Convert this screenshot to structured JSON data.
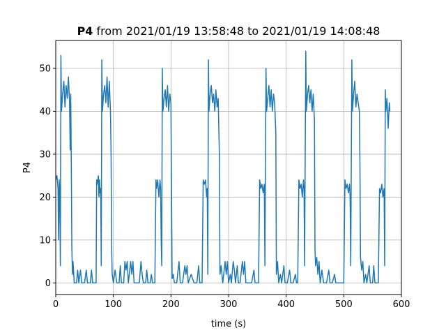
{
  "chart_data": {
    "type": "line",
    "title_bold": "P4",
    "title_rest": " from 2021/01/19 13:58:48 to 2021/01/19 14:08:48",
    "xlabel": "time (s)",
    "ylabel": "P4",
    "xlim": [
      0,
      600
    ],
    "ylim": [
      -2.7,
      56.5
    ],
    "xticks": [
      0,
      100,
      200,
      300,
      400,
      500,
      600
    ],
    "yticks": [
      0,
      10,
      20,
      30,
      40,
      50
    ],
    "grid": true,
    "series_color": "#1f77b4",
    "series": [
      {
        "values": [
          [
            0,
            24
          ],
          [
            2,
            25
          ],
          [
            4,
            22
          ],
          [
            5,
            10
          ],
          [
            6,
            24
          ],
          [
            7,
            21
          ],
          [
            8,
            4
          ],
          [
            9,
            53
          ],
          [
            10,
            40
          ],
          [
            12,
            44
          ],
          [
            14,
            47
          ],
          [
            16,
            41
          ],
          [
            18,
            46
          ],
          [
            20,
            43
          ],
          [
            22,
            48
          ],
          [
            24,
            42
          ],
          [
            25,
            31
          ],
          [
            26,
            44
          ],
          [
            27,
            28
          ],
          [
            28,
            8
          ],
          [
            29,
            2
          ],
          [
            30,
            5
          ],
          [
            32,
            0
          ],
          [
            36,
            0
          ],
          [
            38,
            3
          ],
          [
            40,
            0
          ],
          [
            43,
            3
          ],
          [
            45,
            0
          ],
          [
            50,
            0
          ],
          [
            53,
            3
          ],
          [
            55,
            0
          ],
          [
            60,
            0
          ],
          [
            62,
            3
          ],
          [
            64,
            0
          ],
          [
            66,
            0
          ],
          [
            70,
            0
          ],
          [
            71,
            24
          ],
          [
            72,
            23
          ],
          [
            74,
            25
          ],
          [
            75,
            20
          ],
          [
            76,
            24
          ],
          [
            77,
            21
          ],
          [
            78,
            22
          ],
          [
            79,
            4
          ],
          [
            80,
            52
          ],
          [
            81,
            40
          ],
          [
            83,
            44
          ],
          [
            85,
            46
          ],
          [
            87,
            42
          ],
          [
            89,
            48
          ],
          [
            91,
            41
          ],
          [
            93,
            47
          ],
          [
            95,
            40
          ],
          [
            96,
            30
          ],
          [
            97,
            8
          ],
          [
            98,
            2
          ],
          [
            100,
            0
          ],
          [
            103,
            3
          ],
          [
            106,
            0
          ],
          [
            110,
            0
          ],
          [
            112,
            4
          ],
          [
            114,
            0
          ],
          [
            118,
            0
          ],
          [
            120,
            5
          ],
          [
            122,
            3
          ],
          [
            124,
            5
          ],
          [
            126,
            0
          ],
          [
            130,
            5
          ],
          [
            132,
            2
          ],
          [
            134,
            5
          ],
          [
            136,
            0
          ],
          [
            140,
            0
          ],
          [
            145,
            0
          ],
          [
            148,
            5
          ],
          [
            150,
            2
          ],
          [
            152,
            0
          ],
          [
            156,
            0
          ],
          [
            158,
            3
          ],
          [
            160,
            0
          ],
          [
            164,
            0
          ],
          [
            166,
            2
          ],
          [
            168,
            0
          ],
          [
            170,
            0
          ],
          [
            172,
            0
          ],
          [
            174,
            24
          ],
          [
            175,
            22
          ],
          [
            177,
            24
          ],
          [
            179,
            20
          ],
          [
            181,
            24
          ],
          [
            182,
            22
          ],
          [
            183,
            10
          ],
          [
            184,
            4
          ],
          [
            185,
            50
          ],
          [
            186,
            40
          ],
          [
            188,
            43
          ],
          [
            190,
            45
          ],
          [
            192,
            41
          ],
          [
            194,
            46
          ],
          [
            196,
            40
          ],
          [
            198,
            44
          ],
          [
            200,
            42
          ],
          [
            201,
            20
          ],
          [
            202,
            1
          ],
          [
            204,
            2
          ],
          [
            206,
            0
          ],
          [
            210,
            0
          ],
          [
            214,
            5
          ],
          [
            216,
            0
          ],
          [
            220,
            0
          ],
          [
            224,
            4
          ],
          [
            226,
            2
          ],
          [
            228,
            4
          ],
          [
            230,
            0
          ],
          [
            235,
            2
          ],
          [
            240,
            0
          ],
          [
            245,
            0
          ],
          [
            248,
            4
          ],
          [
            250,
            0
          ],
          [
            254,
            0
          ],
          [
            256,
            24
          ],
          [
            258,
            23
          ],
          [
            260,
            24
          ],
          [
            262,
            20
          ],
          [
            263,
            22
          ],
          [
            264,
            2
          ],
          [
            265,
            52
          ],
          [
            266,
            40
          ],
          [
            268,
            44
          ],
          [
            270,
            46
          ],
          [
            272,
            42
          ],
          [
            274,
            44
          ],
          [
            276,
            40
          ],
          [
            278,
            45
          ],
          [
            280,
            41
          ],
          [
            282,
            43
          ],
          [
            284,
            30
          ],
          [
            285,
            2
          ],
          [
            287,
            4
          ],
          [
            290,
            0
          ],
          [
            294,
            5
          ],
          [
            296,
            2
          ],
          [
            298,
            5
          ],
          [
            300,
            0
          ],
          [
            303,
            2
          ],
          [
            305,
            0
          ],
          [
            308,
            5
          ],
          [
            310,
            3
          ],
          [
            312,
            0
          ],
          [
            315,
            4
          ],
          [
            317,
            0
          ],
          [
            320,
            0
          ],
          [
            324,
            5
          ],
          [
            326,
            2
          ],
          [
            328,
            5
          ],
          [
            330,
            0
          ],
          [
            335,
            0
          ],
          [
            340,
            0
          ],
          [
            344,
            3
          ],
          [
            346,
            0
          ],
          [
            350,
            0
          ],
          [
            352,
            0
          ],
          [
            354,
            24
          ],
          [
            356,
            22
          ],
          [
            358,
            23
          ],
          [
            360,
            21
          ],
          [
            362,
            23
          ],
          [
            363,
            4
          ],
          [
            365,
            50
          ],
          [
            366,
            40
          ],
          [
            368,
            43
          ],
          [
            370,
            46
          ],
          [
            372,
            41
          ],
          [
            374,
            45
          ],
          [
            376,
            40
          ],
          [
            378,
            44
          ],
          [
            380,
            42
          ],
          [
            382,
            35
          ],
          [
            383,
            2
          ],
          [
            385,
            5
          ],
          [
            387,
            0
          ],
          [
            390,
            2
          ],
          [
            392,
            0
          ],
          [
            396,
            4
          ],
          [
            398,
            0
          ],
          [
            402,
            0
          ],
          [
            406,
            3
          ],
          [
            408,
            0
          ],
          [
            412,
            0
          ],
          [
            416,
            2
          ],
          [
            418,
            0
          ],
          [
            420,
            0
          ],
          [
            422,
            24
          ],
          [
            424,
            22
          ],
          [
            426,
            23
          ],
          [
            428,
            20
          ],
          [
            430,
            24
          ],
          [
            431,
            22
          ],
          [
            432,
            4
          ],
          [
            434,
            54
          ],
          [
            435,
            40
          ],
          [
            437,
            44
          ],
          [
            439,
            46
          ],
          [
            441,
            42
          ],
          [
            443,
            45
          ],
          [
            445,
            40
          ],
          [
            447,
            44
          ],
          [
            449,
            38
          ],
          [
            450,
            8
          ],
          [
            451,
            4
          ],
          [
            453,
            6
          ],
          [
            455,
            2
          ],
          [
            457,
            5
          ],
          [
            459,
            0
          ],
          [
            462,
            3
          ],
          [
            465,
            0
          ],
          [
            470,
            0
          ],
          [
            474,
            3
          ],
          [
            476,
            0
          ],
          [
            480,
            0
          ],
          [
            484,
            2
          ],
          [
            486,
            0
          ],
          [
            490,
            0
          ],
          [
            495,
            0
          ],
          [
            500,
            0
          ],
          [
            502,
            24
          ],
          [
            504,
            22
          ],
          [
            506,
            23
          ],
          [
            508,
            21
          ],
          [
            510,
            23
          ],
          [
            511,
            20
          ],
          [
            512,
            4
          ],
          [
            514,
            52
          ],
          [
            515,
            40
          ],
          [
            517,
            44
          ],
          [
            519,
            47
          ],
          [
            521,
            41
          ],
          [
            523,
            44
          ],
          [
            525,
            42
          ],
          [
            527,
            40
          ],
          [
            528,
            28
          ],
          [
            529,
            6
          ],
          [
            531,
            3
          ],
          [
            533,
            5
          ],
          [
            535,
            0
          ],
          [
            538,
            2
          ],
          [
            540,
            0
          ],
          [
            544,
            4
          ],
          [
            546,
            0
          ],
          [
            550,
            0
          ],
          [
            552,
            4
          ],
          [
            554,
            0
          ],
          [
            558,
            0
          ],
          [
            560,
            0
          ],
          [
            562,
            22
          ],
          [
            564,
            21
          ],
          [
            566,
            23
          ],
          [
            568,
            20
          ],
          [
            570,
            22
          ],
          [
            571,
            4
          ],
          [
            572,
            45
          ],
          [
            573,
            40
          ],
          [
            575,
            43
          ],
          [
            577,
            36
          ],
          [
            579,
            42
          ],
          [
            580,
            40
          ]
        ]
      }
    ]
  }
}
